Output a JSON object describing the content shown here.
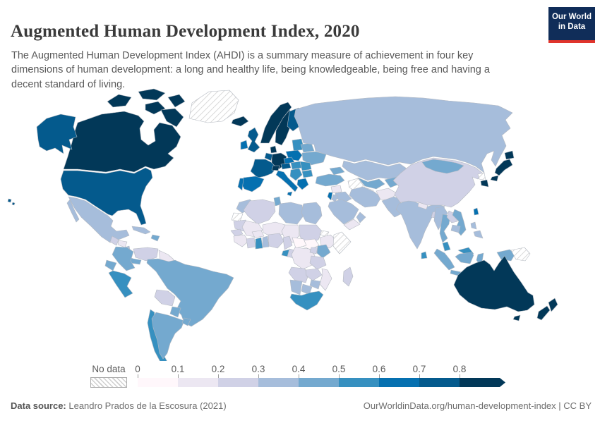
{
  "header": {
    "title": "Augmented Human Development Index, 2020",
    "subtitle": "The Augmented Human Development Index (AHDI) is a summary measure of achievement in four key dimensions of human development: a long and healthy life, being knowledgeable, being free and having a decent standard of living.",
    "logo": {
      "line1": "Our World",
      "line2": "in Data",
      "bg_color": "#102d59",
      "accent_color": "#e0342c"
    }
  },
  "footer": {
    "source_label": "Data source:",
    "source_text": " Leandro Prados de la Escosura (2021)",
    "link_text": "OurWorldinData.org/human-development-index",
    "license_text": " | CC BY"
  },
  "chart_data": {
    "type": "choropleth_map",
    "title": "Augmented Human Development Index, 2020",
    "projection": "world",
    "legend": {
      "no_data_label": "No data",
      "tick_labels": [
        "0",
        "0.1",
        "0.2",
        "0.3",
        "0.4",
        "0.5",
        "0.6",
        "0.7",
        "0.8"
      ],
      "bin_ranges": [
        "0-0.1",
        "0.1-0.2",
        "0.2-0.3",
        "0.3-0.4",
        "0.4-0.5",
        "0.5-0.6",
        "0.6-0.7",
        "0.7-0.8",
        "0.8+"
      ],
      "bin_colors": [
        "#fff7fb",
        "#ece7f2",
        "#d0d1e6",
        "#a6bddb",
        "#74a9cf",
        "#3690c0",
        "#0570b0",
        "#045a8d",
        "#023858"
      ],
      "open_ended_upper": true,
      "no_data_hatch_colors": [
        "#ffffff",
        "#cfcfcf"
      ]
    },
    "border_color": "#b4b9c1",
    "regions": {
      "greenland": "no-data",
      "canada": 8,
      "usa": 7,
      "mexico": 3,
      "guatemala": 2,
      "honduras": 1,
      "nicaragua": 3,
      "costa-rica-panama": 4,
      "cuba": 3,
      "hispaniola": 4,
      "colombia": 4,
      "venezuela": 2,
      "guyanas": 1,
      "ecuador": 4,
      "peru": 5,
      "brazil": 4,
      "bolivia": 2,
      "paraguay": 4,
      "chile": 5,
      "argentina": 4,
      "uruguay": 4,
      "iceland": 8,
      "uk": 7,
      "ireland": 6,
      "norway": 8,
      "sweden": 8,
      "finland": 7,
      "denmark": 8,
      "germany": 8,
      "benelux": 7,
      "france": 7,
      "spain": 6,
      "portugal": 6,
      "italy": 6,
      "switzerland": 8,
      "austria": 7,
      "czechia": 6,
      "poland": 6,
      "baltics": 5,
      "belarus": 4,
      "ukraine": 4,
      "hungary-slovakia": 5,
      "romania": 5,
      "balkans": 5,
      "bulgaria": 5,
      "greece": 6,
      "russia": 3,
      "kazakhstan": 3,
      "uzbekistan": 4,
      "turkmenistan": "no-data",
      "kyrgyzstan-tajikistan": 4,
      "caucasus": 4,
      "turkey": 4,
      "syria": 1,
      "iraq": 3,
      "iran": 3,
      "afghanistan": 1,
      "pakistan": 3,
      "israel": 6,
      "jordan": 3,
      "saudi-arabia": 3,
      "yemen": 1,
      "oman": 3,
      "india": 3,
      "nepal": 1,
      "bangladesh": 2,
      "sri-lanka": 5,
      "china": 2,
      "mongolia": 4,
      "north-korea": "no-data",
      "south-korea": 8,
      "japan": 8,
      "taiwan": 6,
      "myanmar": 3,
      "thailand": 4,
      "laos": 2,
      "vietnam": 4,
      "cambodia": 3,
      "malaysia": 5,
      "indonesia": 4,
      "philippines": 3,
      "papua-new-guinea": "no-data",
      "australia": 8,
      "new-zealand": 8,
      "morocco": 3,
      "western-sahara": "no-data",
      "algeria": 2,
      "tunisia": 4,
      "libya": 3,
      "egypt": 3,
      "mauritania": 2,
      "mali": 1,
      "niger": 1,
      "chad": 1,
      "sudan": 2,
      "eritrea": "no-data",
      "ethiopia": 1,
      "somalia": "no-data",
      "south-sudan": 0,
      "senegal": 2,
      "guinea-group": 1,
      "ivory-coast": 2,
      "ghana": 5,
      "togo-benin": 3,
      "burkina-faso": 1,
      "nigeria": 2,
      "cameroon": 2,
      "central-african-republic": 0,
      "gabon": 5,
      "congo": 2,
      "dr-congo": 1,
      "uganda": 2,
      "kenya": 4,
      "tanzania": 2,
      "angola": 2,
      "zambia": 2,
      "mozambique": 1,
      "zimbabwe": 3,
      "botswana": 3,
      "namibia": 3,
      "south-africa": 5,
      "madagascar": 2
    }
  }
}
